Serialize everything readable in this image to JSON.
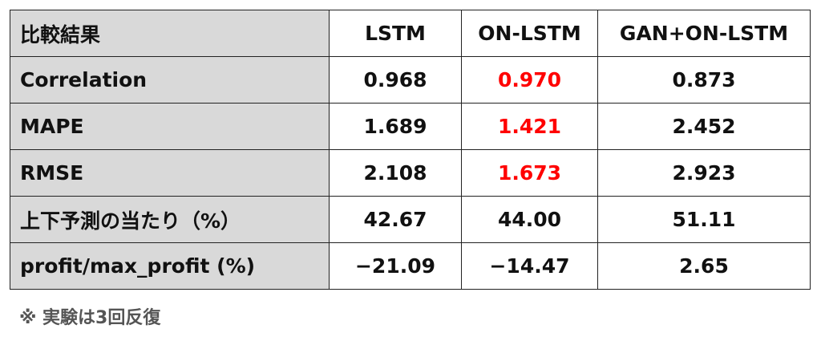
{
  "table": {
    "header": [
      "比較結果",
      "LSTM",
      "ON-LSTM",
      "GAN+ON-LSTM"
    ],
    "rows": [
      [
        "Correlation",
        "0.968",
        "0.970",
        "0.873"
      ],
      [
        "MAPE",
        "1.689",
        "1.421",
        "2.452"
      ],
      [
        "RMSE",
        "2.108",
        "1.673",
        "2.923"
      ],
      [
        "上下予測の当たり（%）",
        "42.67",
        "44.00",
        "51.11"
      ],
      [
        "profit/max_profit (%)",
        "−21.09",
        "−14.47",
        "2.65"
      ]
    ]
  },
  "note": "※ 実験は3回反復"
}
